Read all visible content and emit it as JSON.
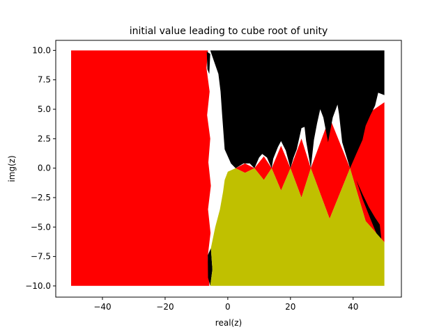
{
  "chart_data": {
    "type": "scatter",
    "title": "initial value leading to cube root of unity",
    "xlabel": "real(z)",
    "ylabel": "img(z)",
    "xlim": [
      -54.9,
      55.4
    ],
    "ylim": [
      -10.95,
      10.85
    ],
    "xticks": [
      -40,
      -20,
      0,
      20,
      40
    ],
    "xtick_labels": [
      "−40",
      "−20",
      "0",
      "20",
      "40"
    ],
    "yticks": [
      -10.0,
      -7.5,
      -5.0,
      -2.5,
      0.0,
      2.5,
      5.0,
      7.5,
      10.0
    ],
    "ytick_labels": [
      "−10.0",
      "−7.5",
      "−5.0",
      "−2.5",
      "0.0",
      "2.5",
      "5.0",
      "7.5",
      "10.0"
    ],
    "grid": false,
    "data_extent": {
      "x": [
        -50,
        50
      ],
      "y": [
        -10,
        10
      ]
    },
    "series": [
      {
        "color": "#ff0000",
        "regions": [
          {
            "points": [
              [
                -50,
                10
              ],
              [
                -6.3,
                10
              ],
              [
                -6.8,
                8.5
              ],
              [
                -5.8,
                6.5
              ],
              [
                -6.6,
                4.5
              ],
              [
                -5.6,
                2.5
              ],
              [
                -6.2,
                0.5
              ],
              [
                -5.4,
                -1.5
              ],
              [
                -6.3,
                -3.5
              ],
              [
                -5.5,
                -5.5
              ],
              [
                -6.4,
                -7.5
              ],
              [
                -5.9,
                -10
              ],
              [
                -50,
                -10
              ]
            ]
          },
          {
            "points": [
              [
                2.5,
                0
              ],
              [
                5.5,
                0.4
              ],
              [
                8.5,
                0
              ],
              [
                5.5,
                -0.4
              ]
            ]
          },
          {
            "points": [
              [
                8.5,
                0
              ],
              [
                11.5,
                1.0
              ],
              [
                14,
                0
              ],
              [
                11.5,
                -1.0
              ]
            ]
          },
          {
            "points": [
              [
                14,
                0
              ],
              [
                17,
                1.9
              ],
              [
                20,
                0
              ],
              [
                17,
                -1.9
              ]
            ]
          },
          {
            "points": [
              [
                20,
                0
              ],
              [
                23.5,
                2.5
              ],
              [
                26.5,
                0
              ],
              [
                23.5,
                -2.5
              ]
            ]
          },
          {
            "points": [
              [
                26.5,
                0
              ],
              [
                32.5,
                4.3
              ],
              [
                39,
                0
              ],
              [
                32.5,
                -4.3
              ]
            ]
          },
          {
            "points": [
              [
                39,
                0
              ],
              [
                44,
                4.5
              ],
              [
                50,
                5.6
              ],
              [
                50,
                -6.3
              ],
              [
                44,
                -4.5
              ]
            ]
          }
        ]
      },
      {
        "color": "#000000",
        "regions": [
          {
            "points": [
              [
                -5.6,
                10
              ],
              [
                50,
                10
              ],
              [
                50,
                6.2
              ],
              [
                48,
                6.4
              ],
              [
                47,
                5.3
              ],
              [
                45.5,
                4.5
              ],
              [
                44,
                3.6
              ],
              [
                43,
                2.4
              ],
              [
                41,
                1.2
              ],
              [
                39,
                0
              ],
              [
                36.5,
                2.2
              ],
              [
                35.5,
                4.6
              ],
              [
                35,
                5.4
              ],
              [
                33.5,
                4.3
              ],
              [
                32,
                2.2
              ],
              [
                30.5,
                4.3
              ],
              [
                29.5,
                5.0
              ],
              [
                28.5,
                3.8
              ],
              [
                27.5,
                2.4
              ],
              [
                26.5,
                0
              ],
              [
                25,
                2.3
              ],
              [
                24.5,
                3.5
              ],
              [
                23.5,
                3.4
              ],
              [
                22,
                1.6
              ],
              [
                21,
                0.9
              ],
              [
                20,
                0
              ],
              [
                18.5,
                1.5
              ],
              [
                17,
                2.3
              ],
              [
                16,
                1.8
              ],
              [
                14.5,
                0.8
              ],
              [
                14,
                0
              ],
              [
                12.5,
                0.9
              ],
              [
                11,
                1.2
              ],
              [
                10,
                0.9
              ],
              [
                8.5,
                0
              ],
              [
                7,
                0.4
              ],
              [
                5,
                0.4
              ],
              [
                2.5,
                0
              ],
              [
                1.0,
                0.4
              ],
              [
                -1.0,
                1.6
              ],
              [
                -1.8,
                4.5
              ],
              [
                -2.3,
                6.5
              ],
              [
                -3.0,
                8.0
              ],
              [
                -4.3,
                9.0
              ]
            ]
          },
          {
            "points": [
              [
                41,
                -1.0
              ],
              [
                43,
                -2.2
              ],
              [
                45,
                -3.3
              ],
              [
                47,
                -4.2
              ],
              [
                48.5,
                -4.8
              ],
              [
                49,
                -6.0
              ],
              [
                47.5,
                -5.6
              ],
              [
                45.5,
                -4.3
              ],
              [
                43,
                -2.6
              ]
            ]
          },
          {
            "points": [
              [
                25.5,
                -1.2
              ],
              [
                27,
                -2.2
              ],
              [
                28,
                -3.5
              ],
              [
                27.2,
                -3.8
              ],
              [
                25.7,
                -2.4
              ]
            ]
          },
          {
            "points": [
              [
                19,
                -1.1
              ],
              [
                21,
                -2.2
              ],
              [
                22.5,
                -3.3
              ],
              [
                21.5,
                -3.5
              ],
              [
                19.5,
                -2.2
              ]
            ]
          },
          {
            "points": [
              [
                -6.4,
                -7.4
              ],
              [
                -5.4,
                -6.8
              ],
              [
                -4.9,
                -8.6
              ],
              [
                -5.6,
                -10
              ],
              [
                -6.3,
                -9.3
              ]
            ]
          },
          {
            "points": [
              [
                -6.7,
                9.9
              ],
              [
                -5.6,
                9.7
              ],
              [
                -5.9,
                8.0
              ],
              [
                -6.5,
                8.4
              ]
            ]
          }
        ]
      },
      {
        "color": "#c0c000",
        "regions": [
          {
            "points": [
              [
                -5.6,
                -10
              ],
              [
                -4.9,
                -8.6
              ],
              [
                -5.4,
                -6.8
              ],
              [
                -4.0,
                -5.0
              ],
              [
                -2.5,
                -3.5
              ],
              [
                -1.5,
                -2.0
              ],
              [
                -1.0,
                -1.0
              ],
              [
                0.0,
                -0.3
              ],
              [
                2.5,
                0
              ],
              [
                5.5,
                -0.4
              ],
              [
                8.5,
                0
              ],
              [
                11.5,
                -1.0
              ],
              [
                14,
                0
              ],
              [
                17,
                -1.9
              ],
              [
                20,
                0
              ],
              [
                23.5,
                -2.5
              ],
              [
                26.5,
                0
              ],
              [
                32.5,
                -4.3
              ],
              [
                39,
                0
              ],
              [
                44,
                -4.5
              ],
              [
                50,
                -6.3
              ],
              [
                50,
                -10
              ]
            ]
          }
        ]
      }
    ]
  }
}
